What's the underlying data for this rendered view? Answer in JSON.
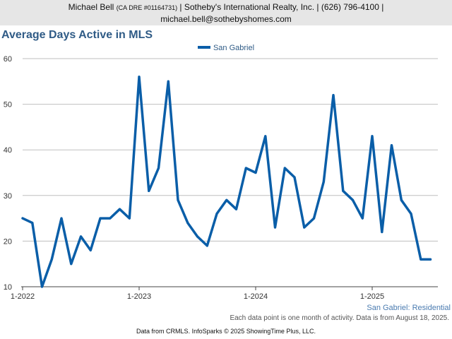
{
  "header": {
    "line1_name": "Michael Bell",
    "line1_dre": "(CA DRE #01164731)",
    "line1_rest": "| Sotheby's International Realty, Inc. | (626) 796-4100 |",
    "line2": "michael.bell@sothebyshomes.com"
  },
  "footnote": "Each data point is one month of activity. Data is from August 18, 2025.",
  "caption": "San Gabriel: Residential",
  "source": "Data from CRMLS. InfoSparks © 2025 ShowingTime Plus, LLC.",
  "colors": {
    "series": "#0a5ea8",
    "title": "#2f5b86",
    "grid": "#bfbfbf",
    "header_bg": "#e6e6e6"
  },
  "chart_data": {
    "type": "line",
    "title": "Average Days Active in MLS",
    "ylim": [
      10,
      60
    ],
    "yticks": [
      10,
      20,
      30,
      40,
      50,
      60
    ],
    "xticks": [
      {
        "label": "1-2022",
        "index": 0
      },
      {
        "label": "1-2023",
        "index": 12
      },
      {
        "label": "1-2024",
        "index": 24
      },
      {
        "label": "1-2025",
        "index": 36
      }
    ],
    "legend_position": "top-center",
    "grid": true,
    "series": [
      {
        "name": "San Gabriel",
        "start": "2022-01",
        "frequency": "monthly",
        "values": [
          25,
          24,
          10,
          16,
          25,
          15,
          21,
          18,
          25,
          25,
          27,
          25,
          56,
          31,
          36,
          55,
          29,
          24,
          21,
          19,
          26,
          29,
          27,
          36,
          35,
          43,
          23,
          36,
          34,
          23,
          25,
          33,
          52,
          31,
          29,
          25,
          43,
          22,
          41,
          29,
          26,
          16,
          16
        ]
      }
    ]
  }
}
